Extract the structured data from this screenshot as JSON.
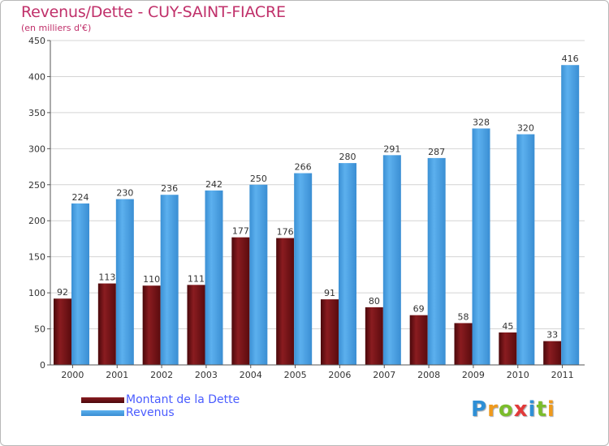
{
  "title": "Revenus/Dette - CUY-SAINT-FIACRE",
  "subtitle": "(en milliers d'€)",
  "logo": {
    "text": "Proxiti",
    "letters": [
      "P",
      "r",
      "o",
      "x",
      "i",
      "t",
      "i"
    ],
    "letter_colors": [
      "#2e8fd6",
      "#f09a1c",
      "#7bbd2c",
      "#e23a3a",
      "#2e8fd6",
      "#7bbd2c",
      "#f09a1c"
    ]
  },
  "legend": {
    "items": [
      {
        "label": "Montant de la Dette",
        "color": "#6b0f12"
      },
      {
        "label": "Revenus",
        "color": "#4aa3e6"
      }
    ]
  },
  "chart_data": {
    "type": "bar",
    "categories": [
      "2000",
      "2001",
      "2002",
      "2003",
      "2004",
      "2005",
      "2006",
      "2007",
      "2008",
      "2009",
      "2010",
      "2011"
    ],
    "series": [
      {
        "name": "Montant de la Dette",
        "color": "#6b0f12",
        "values": [
          92,
          113,
          110,
          111,
          177,
          176,
          91,
          80,
          69,
          58,
          45,
          33
        ]
      },
      {
        "name": "Revenus",
        "color": "#4aa3e6",
        "values": [
          224,
          230,
          236,
          242,
          250,
          266,
          280,
          291,
          287,
          328,
          320,
          416
        ]
      }
    ],
    "ylim": [
      0,
      450
    ],
    "yticks": [
      0,
      50,
      100,
      150,
      200,
      250,
      300,
      350,
      400,
      450
    ],
    "grid": true,
    "legend_position": "bottom-left",
    "data_labels": true
  }
}
